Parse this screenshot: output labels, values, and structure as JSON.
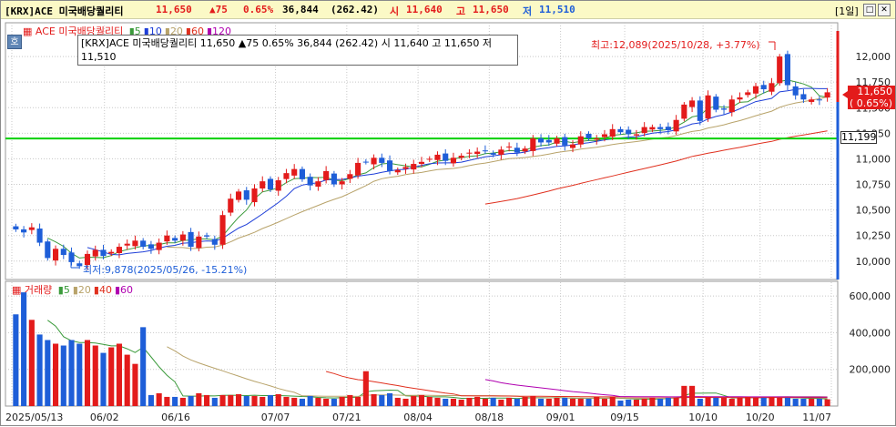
{
  "title": {
    "ticker": "[KRX]ACE 미국배당퀄리티",
    "price": "11,650",
    "change": "▲75",
    "change_pct": "0.65%",
    "volume": "36,844",
    "amount": "(262.42)",
    "open_label": "시",
    "open": "11,640",
    "high_label": "고",
    "high": "11,650",
    "low_label": "저",
    "low": "11,510",
    "period": "[1일]",
    "btn_min": "□",
    "btn_max": "□",
    "btn_close": "✕"
  },
  "side_button": "호",
  "price_legend": {
    "name": "ACE 미국배당퀄리티",
    "ma": [
      {
        "label": "5",
        "color": "#3a9a3a"
      },
      {
        "label": "10",
        "color": "#1f3fd8"
      },
      {
        "label": "20",
        "color": "#b8a36a"
      },
      {
        "label": "60",
        "color": "#e0301e"
      },
      {
        "label": "120",
        "color": "#b000b0"
      }
    ]
  },
  "volume_legend": {
    "name": "거래량",
    "ma": [
      {
        "label": "5",
        "color": "#3a9a3a"
      },
      {
        "label": "20",
        "color": "#b8a36a"
      },
      {
        "label": "40",
        "color": "#e0301e"
      },
      {
        "label": "60",
        "color": "#b000b0"
      }
    ]
  },
  "tooltip": {
    "line1": "[KRX]ACE 미국배당퀄리티 11,650 ▲75 0.65% 36,844 (262.42) 시 11,640 고 11,650 저",
    "line2": "11,510"
  },
  "annotations": {
    "high": "최고:12,089(2025/10/28, +3.77%)",
    "low": "최저:9,878(2025/05/26, -15.21%)"
  },
  "price_tag": {
    "price": "11,650",
    "pct": "( 0.65%)"
  },
  "line_tag": "11,199",
  "colors": {
    "up": "#e31b1b",
    "down": "#1e5ed8",
    "hline": "#00d000",
    "title_bg": "#fbf9c6"
  },
  "chart_data": [
    {
      "type": "candlestick",
      "title": "",
      "y_ticks": [
        "12,000",
        "11,750",
        "11,500",
        "11,250",
        "11,000",
        "10,750",
        "10,500",
        "10,250",
        "10,000"
      ],
      "y_tick_values": [
        12000,
        11750,
        11500,
        11250,
        11000,
        10750,
        10500,
        10250,
        10000
      ],
      "ylim": [
        9820,
        12330
      ],
      "x_ticks": [
        "2025/05/13",
        "06/02",
        "06/16",
        "07/07",
        "07/21",
        "08/04",
        "08/18",
        "09/01",
        "09/15",
        "10/10",
        "10/20",
        "11/07"
      ],
      "horizontal_line": 11199,
      "close": [
        10310,
        10280,
        10330,
        10180,
        10030,
        10120,
        10060,
        9990,
        9950,
        10070,
        10110,
        10050,
        10090,
        10140,
        10170,
        10200,
        10140,
        10120,
        10180,
        10250,
        10200,
        10260,
        10140,
        10240,
        10240,
        10160,
        10450,
        10610,
        10680,
        10600,
        10710,
        10780,
        10700,
        10790,
        10860,
        10900,
        10800,
        10740,
        10780,
        10880,
        10750,
        10780,
        10850,
        10960,
        10970,
        11010,
        10960,
        10880,
        10890,
        10920,
        10950,
        10970,
        11000,
        11040,
        10980,
        11010,
        11030,
        11060,
        11070,
        11080,
        11040,
        11090,
        11120,
        11060,
        11100,
        11200,
        11160,
        11160,
        11200,
        11130,
        11140,
        11220,
        11200,
        11200,
        11240,
        11290,
        11260,
        11240,
        11240,
        11310,
        11310,
        11290,
        11280,
        11380,
        11530,
        11570,
        11370,
        11620,
        11480,
        11480,
        11580,
        11600,
        11650,
        11710,
        11680,
        11740,
        12000,
        11720,
        11620,
        11580,
        11580,
        11575,
        11650
      ],
      "volume": [
        500000,
        620000,
        470000,
        390000,
        360000,
        340000,
        330000,
        360000,
        340000,
        360000,
        330000,
        290000,
        320000,
        340000,
        280000,
        230000,
        430000,
        60000,
        70000,
        50000,
        50000,
        45000,
        55000,
        70000,
        60000,
        45000,
        60000,
        60000,
        65000,
        55000,
        55000,
        50000,
        60000,
        65000,
        50000,
        45000,
        40000,
        55000,
        45000,
        40000,
        40000,
        50000,
        60000,
        50000,
        190000,
        65000,
        60000,
        70000,
        45000,
        40000,
        55000,
        60000,
        50000,
        45000,
        40000,
        40000,
        35000,
        45000,
        50000,
        40000,
        45000,
        35000,
        45000,
        40000,
        50000,
        55000,
        40000,
        40000,
        45000,
        45000,
        40000,
        40000,
        40000,
        50000,
        40000,
        50000,
        30000,
        35000,
        35000,
        40000,
        45000,
        40000,
        45000,
        45000,
        110000,
        110000,
        40000,
        50000,
        45000,
        45000,
        40000,
        45000,
        50000,
        45000,
        45000,
        50000,
        45000,
        45000,
        40000,
        40000,
        40000,
        40000,
        36844
      ],
      "volume_ticks": [
        "600,000",
        "400,000",
        "200,000"
      ],
      "volume_tick_values": [
        600000,
        400000,
        200000
      ],
      "volume_ylim": [
        0,
        680000
      ]
    }
  ]
}
